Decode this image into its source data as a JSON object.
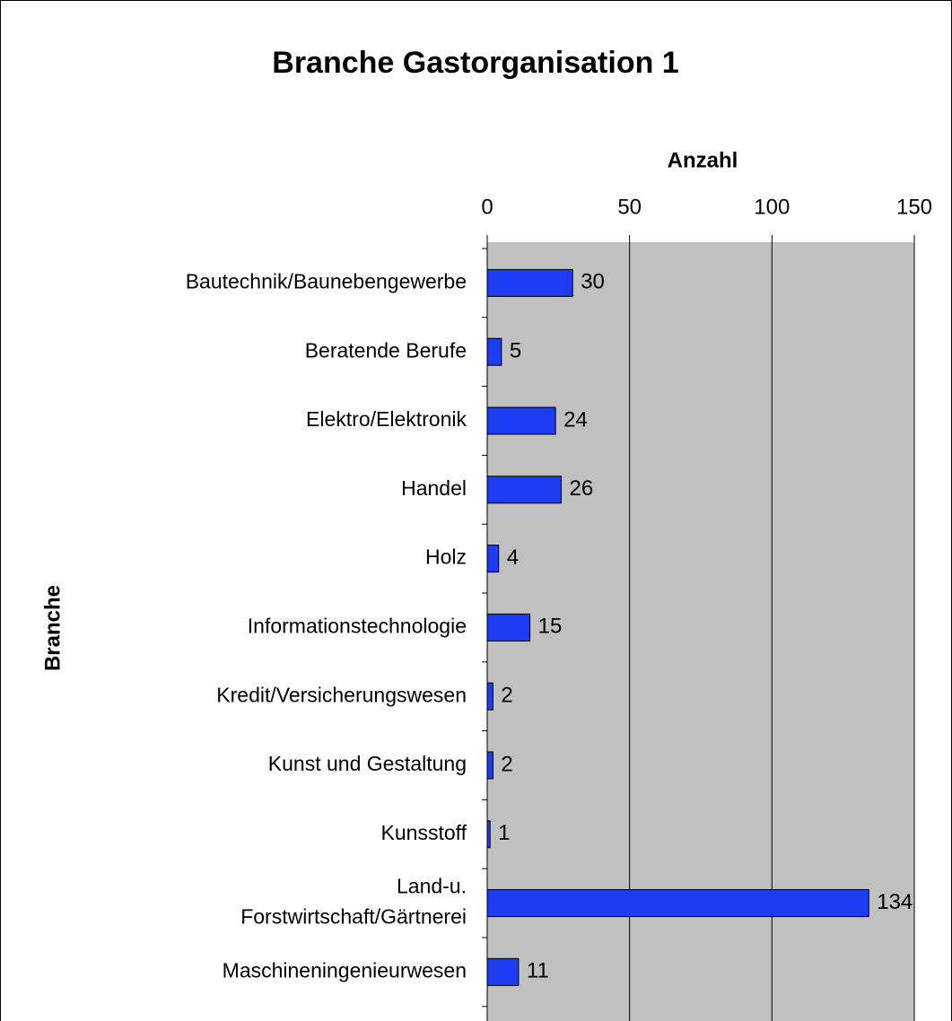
{
  "chart_data": {
    "type": "barh",
    "title": "Branche Gastorganisation 1",
    "x_label": "Anzahl",
    "y_label": "Branche",
    "categories": [
      "Bautechnik/Baunebengewerbe",
      "Beratende Berufe",
      "Elektro/Elektronik",
      "Handel",
      "Holz",
      "Informationstechnologie",
      "Kredit/Versicherungswesen",
      "Kunst und Gestaltung",
      "Kunsstoff",
      "Land-u. Forstwirtschaft/Gärtnerei",
      "Maschineningenieurwesen"
    ],
    "values": [
      30,
      5,
      24,
      26,
      4,
      15,
      2,
      2,
      1,
      134,
      11
    ],
    "color": "#1f3cf5",
    "xlim": [
      0,
      150
    ],
    "xticks": [
      0,
      50,
      100,
      150
    ],
    "grid": true
  }
}
